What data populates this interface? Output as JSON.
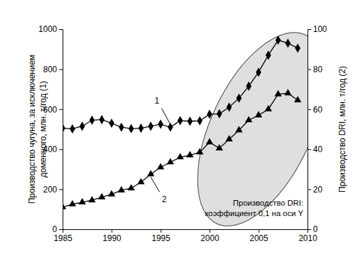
{
  "chart_data": {
    "type": "line",
    "ylabel": [
      "Производство чугуна, за исключением",
      "доменного, млн. т/год (1)"
    ],
    "y2label": "Производство DRI, млн. т/год (2)",
    "annotations": [
      "Производство DRI:",
      "коэффициент 0,1 на оси Y"
    ],
    "x": [
      1985,
      1986,
      1987,
      1988,
      1989,
      1990,
      1991,
      1992,
      1993,
      1994,
      1995,
      1996,
      1997,
      1998,
      1999,
      2000,
      2001,
      2002,
      2003,
      2004,
      2005,
      2006,
      2007,
      2008,
      2009
    ],
    "xlim": [
      1985,
      2010
    ],
    "xticks": [
      1985,
      1990,
      1995,
      2000,
      2005,
      2010
    ],
    "ylim": [
      0,
      1000
    ],
    "yticks": [
      0,
      200,
      400,
      600,
      800,
      1000
    ],
    "y2lim": [
      0,
      100
    ],
    "y2ticks": [
      0,
      20,
      40,
      60,
      80,
      100
    ],
    "grid": false,
    "series": [
      {
        "name": "1",
        "color": "#000000",
        "marker": "diamond",
        "line_style": "solid",
        "values": [
          505,
          502,
          515,
          545,
          548,
          530,
          510,
          503,
          505,
          515,
          525,
          510,
          543,
          540,
          542,
          575,
          577,
          610,
          655,
          715,
          785,
          870,
          945,
          930,
          905
        ]
      },
      {
        "name": "2",
        "color": "#000000",
        "marker": "triangle",
        "line_style": "solid",
        "axis": "y2",
        "values": [
          11,
          12.5,
          13.5,
          14.5,
          16,
          17.5,
          19.5,
          20.5,
          23.5,
          27.5,
          31,
          33.5,
          36,
          37,
          38.5,
          43.5,
          40.5,
          45,
          49.5,
          54.5,
          57,
          60,
          67.5,
          68,
          64.5
        ]
      }
    ]
  }
}
